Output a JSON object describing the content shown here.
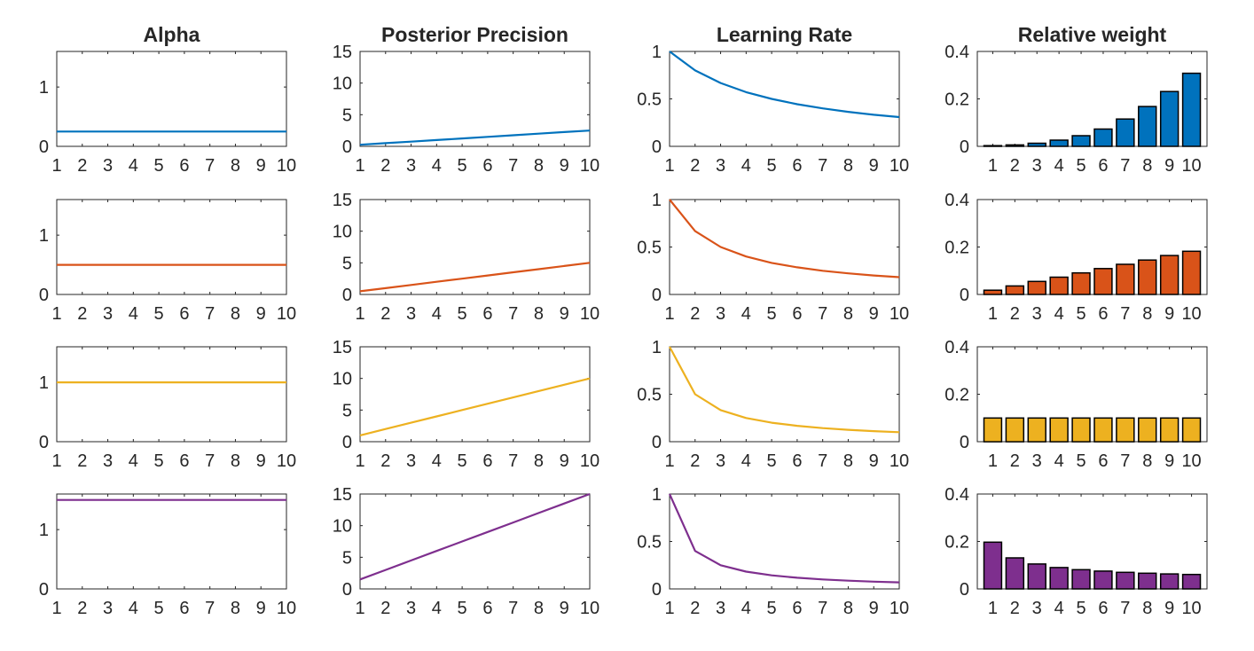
{
  "chart_data": [
    {
      "type": "line",
      "title": "Alpha",
      "x": [
        1,
        2,
        3,
        4,
        5,
        6,
        7,
        8,
        9,
        10
      ],
      "xticks": [
        1,
        2,
        3,
        4,
        5,
        6,
        7,
        8,
        9,
        10
      ],
      "yticks": [
        0,
        1
      ],
      "xlim": [
        1,
        10
      ],
      "ylim": [
        0,
        1.6
      ],
      "color": "#0072BD",
      "series": [
        {
          "values": [
            0.25,
            0.25,
            0.25,
            0.25,
            0.25,
            0.25,
            0.25,
            0.25,
            0.25,
            0.25
          ]
        }
      ]
    },
    {
      "type": "line",
      "title": "Posterior Precision",
      "x": [
        1,
        2,
        3,
        4,
        5,
        6,
        7,
        8,
        9,
        10
      ],
      "xticks": [
        1,
        2,
        3,
        4,
        5,
        6,
        7,
        8,
        9,
        10
      ],
      "yticks": [
        0,
        5,
        10,
        15
      ],
      "xlim": [
        1,
        10
      ],
      "ylim": [
        0,
        15
      ],
      "color": "#0072BD",
      "series": [
        {
          "values": [
            0.25,
            0.5,
            0.75,
            1.0,
            1.25,
            1.5,
            1.75,
            2.0,
            2.25,
            2.5
          ]
        }
      ]
    },
    {
      "type": "line",
      "title": "Learning Rate",
      "x": [
        1,
        2,
        3,
        4,
        5,
        6,
        7,
        8,
        9,
        10
      ],
      "xticks": [
        1,
        2,
        3,
        4,
        5,
        6,
        7,
        8,
        9,
        10
      ],
      "yticks": [
        0,
        0.5,
        1
      ],
      "xlim": [
        1,
        10
      ],
      "ylim": [
        0,
        1
      ],
      "color": "#0072BD",
      "series": [
        {
          "values": [
            1.0,
            0.8,
            0.667,
            0.571,
            0.5,
            0.444,
            0.4,
            0.364,
            0.333,
            0.308
          ]
        }
      ]
    },
    {
      "type": "bar",
      "title": "Relative weight",
      "categories": [
        1,
        2,
        3,
        4,
        5,
        6,
        7,
        8,
        9,
        10
      ],
      "yticks": [
        0,
        0.2,
        0.4
      ],
      "xlim": [
        0.3,
        10.7
      ],
      "ylim": [
        0,
        0.4
      ],
      "color": "#0072BD",
      "series": [
        {
          "values": [
            0.003,
            0.006,
            0.013,
            0.026,
            0.045,
            0.073,
            0.115,
            0.168,
            0.231,
            0.308
          ]
        }
      ]
    },
    {
      "type": "line",
      "title": "",
      "x": [
        1,
        2,
        3,
        4,
        5,
        6,
        7,
        8,
        9,
        10
      ],
      "xticks": [
        1,
        2,
        3,
        4,
        5,
        6,
        7,
        8,
        9,
        10
      ],
      "yticks": [
        0,
        1
      ],
      "xlim": [
        1,
        10
      ],
      "ylim": [
        0,
        1.6
      ],
      "color": "#D95319",
      "series": [
        {
          "values": [
            0.5,
            0.5,
            0.5,
            0.5,
            0.5,
            0.5,
            0.5,
            0.5,
            0.5,
            0.5
          ]
        }
      ]
    },
    {
      "type": "line",
      "title": "",
      "x": [
        1,
        2,
        3,
        4,
        5,
        6,
        7,
        8,
        9,
        10
      ],
      "xticks": [
        1,
        2,
        3,
        4,
        5,
        6,
        7,
        8,
        9,
        10
      ],
      "yticks": [
        0,
        5,
        10,
        15
      ],
      "xlim": [
        1,
        10
      ],
      "ylim": [
        0,
        15
      ],
      "color": "#D95319",
      "series": [
        {
          "values": [
            0.5,
            1.0,
            1.5,
            2.0,
            2.5,
            3.0,
            3.5,
            4.0,
            4.5,
            5.0
          ]
        }
      ]
    },
    {
      "type": "line",
      "title": "",
      "x": [
        1,
        2,
        3,
        4,
        5,
        6,
        7,
        8,
        9,
        10
      ],
      "xticks": [
        1,
        2,
        3,
        4,
        5,
        6,
        7,
        8,
        9,
        10
      ],
      "yticks": [
        0,
        0.5,
        1
      ],
      "xlim": [
        1,
        10
      ],
      "ylim": [
        0,
        1
      ],
      "color": "#D95319",
      "series": [
        {
          "values": [
            1.0,
            0.667,
            0.5,
            0.4,
            0.333,
            0.286,
            0.25,
            0.222,
            0.2,
            0.182
          ]
        }
      ]
    },
    {
      "type": "bar",
      "title": "",
      "categories": [
        1,
        2,
        3,
        4,
        5,
        6,
        7,
        8,
        9,
        10
      ],
      "yticks": [
        0,
        0.2,
        0.4
      ],
      "xlim": [
        0.3,
        10.7
      ],
      "ylim": [
        0,
        0.4
      ],
      "color": "#D95319",
      "series": [
        {
          "values": [
            0.018,
            0.036,
            0.055,
            0.073,
            0.091,
            0.109,
            0.127,
            0.145,
            0.164,
            0.182
          ]
        }
      ]
    },
    {
      "type": "line",
      "title": "",
      "x": [
        1,
        2,
        3,
        4,
        5,
        6,
        7,
        8,
        9,
        10
      ],
      "xticks": [
        1,
        2,
        3,
        4,
        5,
        6,
        7,
        8,
        9,
        10
      ],
      "yticks": [
        0,
        1
      ],
      "xlim": [
        1,
        10
      ],
      "ylim": [
        0,
        1.6
      ],
      "color": "#EDB120",
      "series": [
        {
          "values": [
            1,
            1,
            1,
            1,
            1,
            1,
            1,
            1,
            1,
            1
          ]
        }
      ]
    },
    {
      "type": "line",
      "title": "",
      "x": [
        1,
        2,
        3,
        4,
        5,
        6,
        7,
        8,
        9,
        10
      ],
      "xticks": [
        1,
        2,
        3,
        4,
        5,
        6,
        7,
        8,
        9,
        10
      ],
      "yticks": [
        0,
        5,
        10,
        15
      ],
      "xlim": [
        1,
        10
      ],
      "ylim": [
        0,
        15
      ],
      "color": "#EDB120",
      "series": [
        {
          "values": [
            1,
            2,
            3,
            4,
            5,
            6,
            7,
            8,
            9,
            10
          ]
        }
      ]
    },
    {
      "type": "line",
      "title": "",
      "x": [
        1,
        2,
        3,
        4,
        5,
        6,
        7,
        8,
        9,
        10
      ],
      "xticks": [
        1,
        2,
        3,
        4,
        5,
        6,
        7,
        8,
        9,
        10
      ],
      "yticks": [
        0,
        0.5,
        1
      ],
      "xlim": [
        1,
        10
      ],
      "ylim": [
        0,
        1
      ],
      "color": "#EDB120",
      "series": [
        {
          "values": [
            1.0,
            0.5,
            0.333,
            0.25,
            0.2,
            0.167,
            0.143,
            0.125,
            0.111,
            0.1
          ]
        }
      ]
    },
    {
      "type": "bar",
      "title": "",
      "categories": [
        1,
        2,
        3,
        4,
        5,
        6,
        7,
        8,
        9,
        10
      ],
      "yticks": [
        0,
        0.2,
        0.4
      ],
      "xlim": [
        0.3,
        10.7
      ],
      "ylim": [
        0,
        0.4
      ],
      "color": "#EDB120",
      "series": [
        {
          "values": [
            0.1,
            0.1,
            0.1,
            0.1,
            0.1,
            0.1,
            0.1,
            0.1,
            0.1,
            0.1
          ]
        }
      ]
    },
    {
      "type": "line",
      "title": "",
      "x": [
        1,
        2,
        3,
        4,
        5,
        6,
        7,
        8,
        9,
        10
      ],
      "xticks": [
        1,
        2,
        3,
        4,
        5,
        6,
        7,
        8,
        9,
        10
      ],
      "yticks": [
        0,
        1
      ],
      "xlim": [
        1,
        10
      ],
      "ylim": [
        0,
        1.6
      ],
      "color": "#7E2F8E",
      "series": [
        {
          "values": [
            1.5,
            1.5,
            1.5,
            1.5,
            1.5,
            1.5,
            1.5,
            1.5,
            1.5,
            1.5
          ]
        }
      ]
    },
    {
      "type": "line",
      "title": "",
      "x": [
        1,
        2,
        3,
        4,
        5,
        6,
        7,
        8,
        9,
        10
      ],
      "xticks": [
        1,
        2,
        3,
        4,
        5,
        6,
        7,
        8,
        9,
        10
      ],
      "yticks": [
        0,
        5,
        10,
        15
      ],
      "xlim": [
        1,
        10
      ],
      "ylim": [
        0,
        15
      ],
      "color": "#7E2F8E",
      "series": [
        {
          "values": [
            1.5,
            3.0,
            4.5,
            6.0,
            7.5,
            9.0,
            10.5,
            12.0,
            13.5,
            15.0
          ]
        }
      ]
    },
    {
      "type": "line",
      "title": "",
      "x": [
        1,
        2,
        3,
        4,
        5,
        6,
        7,
        8,
        9,
        10
      ],
      "xticks": [
        1,
        2,
        3,
        4,
        5,
        6,
        7,
        8,
        9,
        10
      ],
      "yticks": [
        0,
        0.5,
        1
      ],
      "xlim": [
        1,
        10
      ],
      "ylim": [
        0,
        1
      ],
      "color": "#7E2F8E",
      "series": [
        {
          "values": [
            1.0,
            0.4,
            0.25,
            0.182,
            0.143,
            0.118,
            0.1,
            0.087,
            0.077,
            0.069
          ]
        }
      ]
    },
    {
      "type": "bar",
      "title": "",
      "categories": [
        1,
        2,
        3,
        4,
        5,
        6,
        7,
        8,
        9,
        10
      ],
      "yticks": [
        0,
        0.2,
        0.4
      ],
      "xlim": [
        0.3,
        10.7
      ],
      "ylim": [
        0,
        0.4
      ],
      "color": "#7E2F8E",
      "series": [
        {
          "values": [
            0.197,
            0.131,
            0.105,
            0.09,
            0.081,
            0.075,
            0.07,
            0.066,
            0.063,
            0.061
          ]
        }
      ]
    }
  ]
}
